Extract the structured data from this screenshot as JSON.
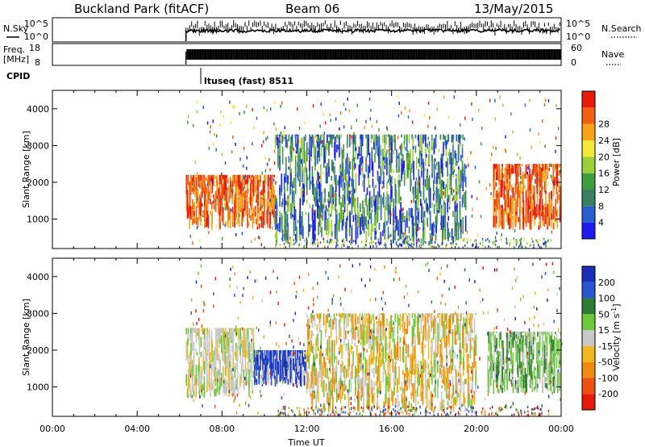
{
  "header": {
    "station": "Buckland Park (fitACF)",
    "beam": "Beam 06",
    "date": "13/May/2015"
  },
  "noise_panel": {
    "left_label": "N.Sky",
    "right_label": "N.Search",
    "ticks_left": [
      "10^5",
      "10^0"
    ],
    "ticks_right": [
      "10^5",
      "10^0"
    ]
  },
  "freq_panel": {
    "left_label_line1": "Freq.",
    "left_label_line2": "[MHz]",
    "right_label": "Nave",
    "ticks_left": [
      "18",
      "8"
    ],
    "ticks_right": [
      "60",
      "0"
    ]
  },
  "cpid": {
    "label": "CPID",
    "program": "ltuseq (fast) 8511"
  },
  "x_axis": {
    "label": "Time UT",
    "ticks": [
      "00:00",
      "04:00",
      "08:00",
      "12:00",
      "16:00",
      "20:00",
      "00:00"
    ]
  },
  "chart_data": [
    {
      "type": "heatmap",
      "title": "",
      "xlabel": "",
      "ylabel": "Slant Range [km]",
      "x_range_hours": [
        0,
        24
      ],
      "ylim": [
        200,
        4500
      ],
      "yticks": [
        "1000",
        "2000",
        "3000",
        "4000"
      ],
      "colorbar": {
        "label": "Power [dB]",
        "ticks": [
          "4",
          "8",
          "12",
          "16",
          "20",
          "24",
          "28"
        ],
        "colors": [
          "#1c1cf0",
          "#2a5fd0",
          "#3d7f63",
          "#3e9e3e",
          "#9ad13a",
          "#f3e83a",
          "#f7a31a",
          "#f06010",
          "#e81a0a"
        ]
      },
      "data_start_hour": 6.3,
      "regions": [
        {
          "t": [
            6.3,
            10.5
          ],
          "range_km": [
            700,
            2200
          ],
          "value": "high (24-28 dB)"
        },
        {
          "t": [
            10.5,
            19.5
          ],
          "range_km": [
            300,
            3300
          ],
          "value": "low-mid (4-16 dB)"
        },
        {
          "t": [
            20.8,
            24
          ],
          "range_km": [
            700,
            2500
          ],
          "value": "high (20-28 dB)"
        }
      ]
    },
    {
      "type": "heatmap",
      "title": "",
      "xlabel": "Time UT",
      "ylabel": "Slant Range [km]",
      "x_range_hours": [
        0,
        24
      ],
      "ylim": [
        200,
        4500
      ],
      "yticks": [
        "1000",
        "2000",
        "3000",
        "4000"
      ],
      "colorbar": {
        "label": "Velocity [m s^-1]",
        "label_main": "Velocity [m s",
        "label_sup": "-1",
        "label_end": "]",
        "ticks": [
          "200",
          "100",
          "50",
          "15",
          "-15",
          "-50",
          "-100",
          "-200"
        ],
        "colors": [
          "#1a2fb8",
          "#2a55d0",
          "#2f7a35",
          "#6cc83a",
          "#c8c8c8",
          "#f0b820",
          "#f08a10",
          "#f05010",
          "#e81a0a"
        ]
      },
      "data_start_hour": 6.3,
      "regions": [
        {
          "t": [
            6.3,
            9.5
          ],
          "range_km": [
            700,
            2600
          ],
          "value": "mixed: grey/orange/green"
        },
        {
          "t": [
            9.5,
            12.0
          ],
          "range_km": [
            1000,
            2000
          ],
          "value": "blue (positive)"
        },
        {
          "t": [
            12.0,
            20.0
          ],
          "range_km": [
            300,
            3000
          ],
          "value": "mixed orange/green"
        },
        {
          "t": [
            20.5,
            24
          ],
          "range_km": [
            800,
            2500
          ],
          "value": "green/grey"
        }
      ]
    }
  ]
}
